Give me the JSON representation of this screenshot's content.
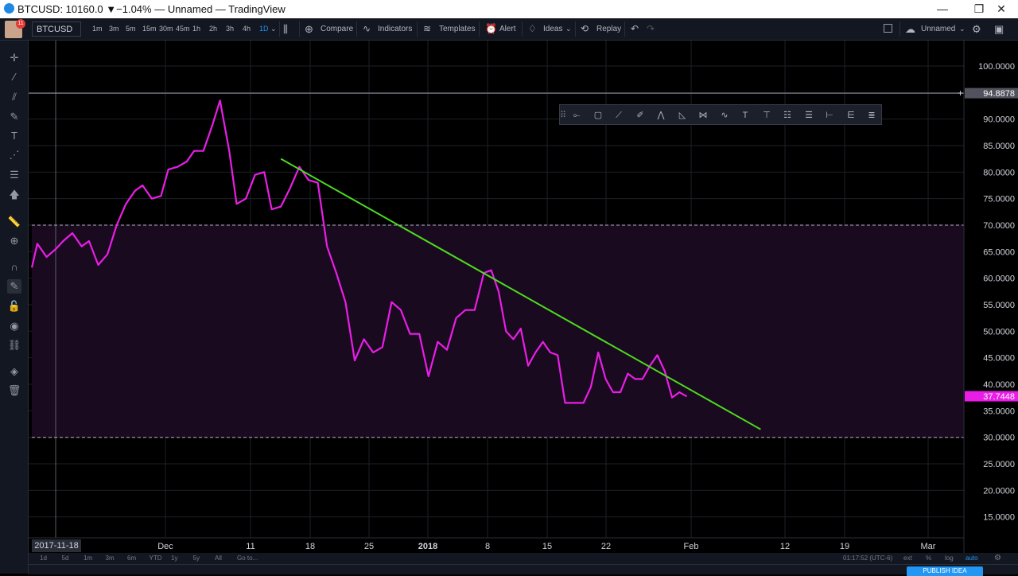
{
  "window": {
    "title": "BTCUSD: 10160.0 ▼−1.04% — Unnamed — TradingView",
    "minimize": "—",
    "maximize": "❐",
    "close": "✕"
  },
  "toolbar": {
    "badge_count": "11",
    "symbol": "BTCUSD",
    "intervals": [
      "1m",
      "3m",
      "5m",
      "15m",
      "30m",
      "45m",
      "1h",
      "2h",
      "3h",
      "4h",
      "1D"
    ],
    "active_interval": "1D",
    "compare": "Compare",
    "indicators": "Indicators",
    "templates": "Templates",
    "alert": "Alert",
    "ideas": "Ideas",
    "replay": "Replay",
    "layout_name": "Unnamed"
  },
  "chart_data": {
    "type": "line",
    "symbol": "BTCUSD",
    "line_color": "#e91ee6",
    "trendline_color": "#4cdb1f",
    "zone_color": "#1a0a1f",
    "x_ticks": [
      "2017-11-18",
      "Dec",
      "11",
      "18",
      "25",
      "2018",
      "8",
      "15",
      "22",
      "Feb",
      "12",
      "19",
      "Mar"
    ],
    "y_ticks": [
      "100.0000",
      "95.0000",
      "90.0000",
      "85.0000",
      "80.0000",
      "75.0000",
      "70.0000",
      "65.0000",
      "60.0000",
      "55.0000",
      "50.0000",
      "45.0000",
      "40.0000",
      "35.0000",
      "30.0000",
      "25.0000",
      "20.0000",
      "15.0000"
    ],
    "ylim": [
      11,
      103
    ],
    "crosshair_value": "94.8878",
    "last_value": "37.7448",
    "horizontal_lines": [
      70,
      30
    ],
    "trendline": [
      [
        13.5,
        82.5
      ],
      [
        39.5,
        31.5
      ]
    ],
    "series": [
      {
        "values": [
          [
            0,
            62
          ],
          [
            0.3,
            66.5
          ],
          [
            0.8,
            64
          ],
          [
            1.3,
            65.5
          ],
          [
            1.7,
            67
          ],
          [
            2.2,
            68.5
          ],
          [
            2.7,
            66
          ],
          [
            3.1,
            67
          ],
          [
            3.6,
            62.5
          ],
          [
            4.1,
            64.5
          ],
          [
            4.6,
            70
          ],
          [
            5.1,
            74
          ],
          [
            5.6,
            76.5
          ],
          [
            6.0,
            77.5
          ],
          [
            6.5,
            75
          ],
          [
            7.0,
            75.5
          ],
          [
            7.4,
            80.5
          ],
          [
            7.9,
            81
          ],
          [
            8.4,
            82
          ],
          [
            8.8,
            84
          ],
          [
            9.3,
            84
          ],
          [
            9.8,
            89
          ],
          [
            10.2,
            93.5
          ],
          [
            10.7,
            84
          ],
          [
            11.1,
            74
          ],
          [
            11.6,
            75
          ],
          [
            12.1,
            79.5
          ],
          [
            12.6,
            80
          ],
          [
            13.0,
            73
          ],
          [
            13.5,
            73.5
          ],
          [
            14.0,
            77
          ],
          [
            14.5,
            81
          ],
          [
            15.0,
            78.5
          ],
          [
            15.5,
            78
          ],
          [
            16.0,
            66
          ],
          [
            16.5,
            61
          ],
          [
            17.0,
            55.5
          ],
          [
            17.5,
            44.5
          ],
          [
            18.0,
            48.5
          ],
          [
            18.5,
            46
          ],
          [
            19.0,
            47
          ],
          [
            19.5,
            55.5
          ],
          [
            20.0,
            54
          ],
          [
            20.5,
            49.5
          ],
          [
            21.0,
            49.5
          ],
          [
            21.5,
            41.5
          ],
          [
            22.0,
            48
          ],
          [
            22.5,
            46.5
          ],
          [
            23.0,
            52.5
          ],
          [
            23.5,
            54
          ],
          [
            24.0,
            54
          ],
          [
            24.5,
            61
          ],
          [
            24.9,
            61.5
          ],
          [
            25.3,
            57.5
          ],
          [
            25.7,
            50
          ],
          [
            26.1,
            48.5
          ],
          [
            26.5,
            50.5
          ],
          [
            26.9,
            43.5
          ],
          [
            27.3,
            46
          ],
          [
            27.7,
            48
          ],
          [
            28.1,
            46
          ],
          [
            28.5,
            45.5
          ],
          [
            28.9,
            36.5
          ],
          [
            29.4,
            36.5
          ],
          [
            29.9,
            36.5
          ],
          [
            30.3,
            39.5
          ],
          [
            30.7,
            46
          ],
          [
            31.1,
            41
          ],
          [
            31.5,
            38.5
          ],
          [
            31.9,
            38.5
          ],
          [
            32.3,
            42
          ],
          [
            32.7,
            41
          ],
          [
            33.1,
            41
          ],
          [
            33.5,
            43.5
          ],
          [
            33.9,
            45.5
          ],
          [
            34.3,
            42.5
          ],
          [
            34.7,
            37.5
          ],
          [
            35.1,
            38.5
          ],
          [
            35.5,
            37.7
          ]
        ]
      }
    ]
  },
  "bottombar": {
    "ranges": [
      "1d",
      "5d",
      "1m",
      "3m",
      "6m",
      "YTD",
      "1y",
      "5y",
      "All"
    ],
    "goto": "Go to...",
    "time": "01:17:52 (UTC-6)",
    "ext": "ext",
    "percent": "%",
    "log": "log",
    "auto": "auto",
    "publish": "PUBLISH IDEA"
  }
}
